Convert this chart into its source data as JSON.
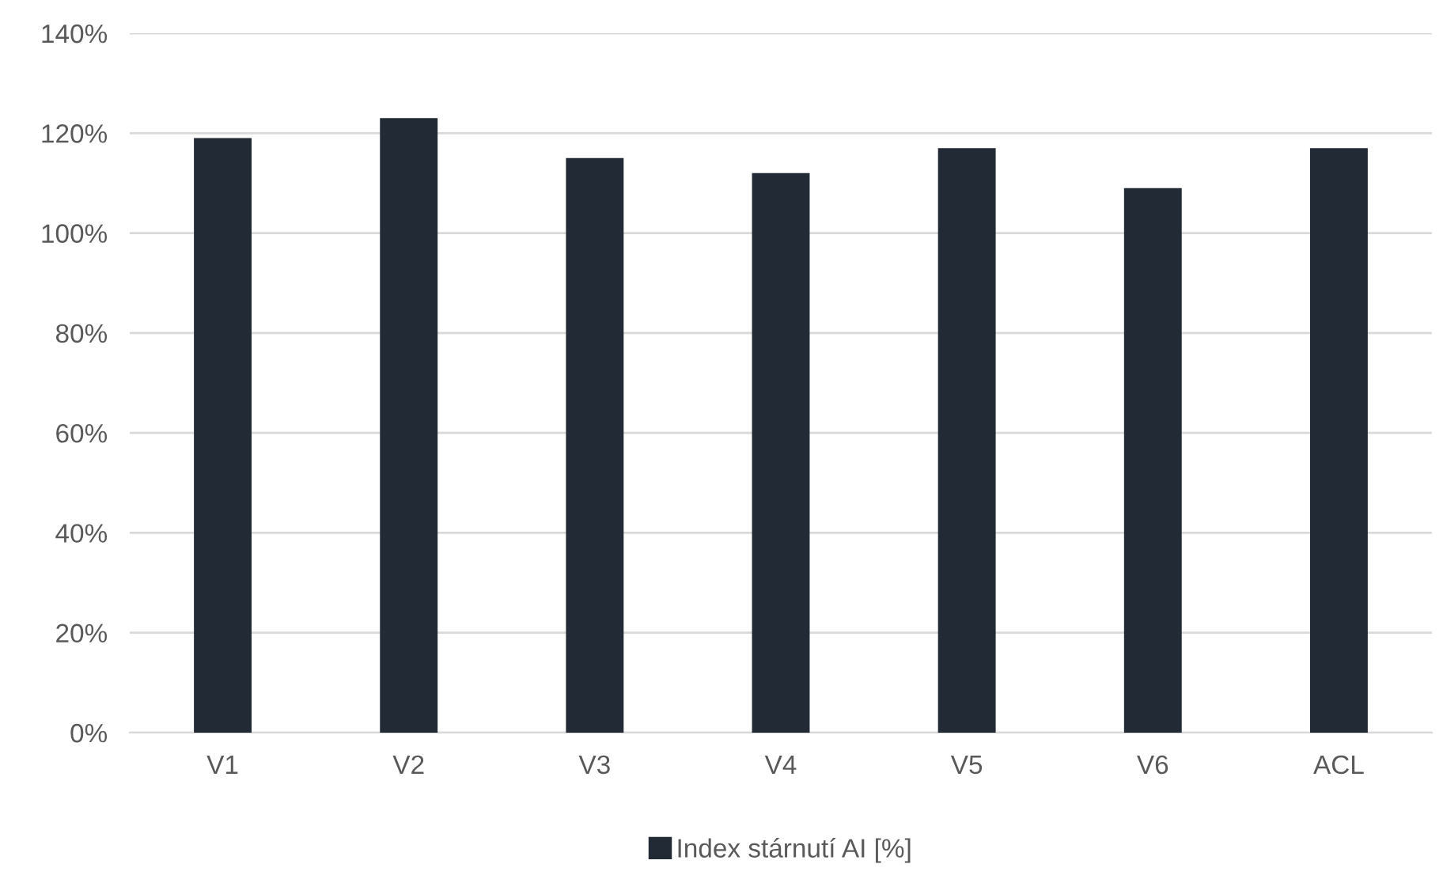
{
  "chart_data": {
    "type": "bar",
    "categories": [
      "V1",
      "V2",
      "V3",
      "V4",
      "V5",
      "V6",
      "ACL"
    ],
    "series": [
      {
        "name": "Index stárnutí AI [%]",
        "color": "#222a35",
        "values": [
          119,
          123,
          115,
          112,
          117,
          109,
          117
        ]
      }
    ],
    "ylim": [
      0,
      140
    ],
    "yticks": [
      {
        "value": 0,
        "label": "0%"
      },
      {
        "value": 20,
        "label": "20%"
      },
      {
        "value": 40,
        "label": "40%"
      },
      {
        "value": 60,
        "label": "60%"
      },
      {
        "value": 80,
        "label": "80%"
      },
      {
        "value": 100,
        "label": "100%"
      },
      {
        "value": 120,
        "label": "120%"
      },
      {
        "value": 140,
        "label": "140%"
      }
    ],
    "grid": "y",
    "legend": "bottom"
  }
}
